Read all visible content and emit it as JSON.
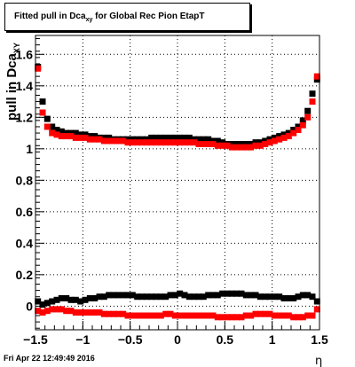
{
  "title": {
    "prefix": "Fitted pull in Dca",
    "subscript": "xy",
    "suffix": " for Global Rec Pion EtapT"
  },
  "footer": {
    "timestamp": "Fri Apr 22 12:49:49 2016"
  },
  "chart_data": {
    "type": "scatter",
    "xlabel": "η",
    "ylabel": "pull in Dca",
    "ylabel_subscript": "XY",
    "xlim": [
      -1.5,
      1.5
    ],
    "ylim": [
      -0.15,
      1.72
    ],
    "grid": true,
    "x_ticks": [
      -1.5,
      -1,
      -0.5,
      0,
      0.5,
      1,
      1.5
    ],
    "x_tick_labels": [
      "−1.5",
      "−1",
      "−0.5",
      "0",
      "0.5",
      "1",
      "1.5"
    ],
    "y_ticks": [
      0,
      0.2,
      0.4,
      0.6,
      0.8,
      1.0,
      1.2,
      1.4,
      1.6
    ],
    "y_tick_labels": [
      "0",
      "0.2",
      "0.4",
      "0.6",
      "0.8",
      "1",
      "1.2",
      "1.4",
      "1.6"
    ],
    "series": [
      {
        "color": "#000000",
        "x": [
          -1.475,
          -1.425,
          -1.375,
          -1.325,
          -1.275,
          -1.225,
          -1.175,
          -1.125,
          -1.075,
          -1.025,
          -0.975,
          -0.925,
          -0.875,
          -0.825,
          -0.775,
          -0.725,
          -0.675,
          -0.625,
          -0.575,
          -0.525,
          -0.475,
          -0.425,
          -0.375,
          -0.325,
          -0.275,
          -0.225,
          -0.175,
          -0.125,
          -0.075,
          -0.025,
          0.025,
          0.075,
          0.125,
          0.175,
          0.225,
          0.275,
          0.325,
          0.375,
          0.425,
          0.475,
          0.525,
          0.575,
          0.625,
          0.675,
          0.725,
          0.775,
          0.825,
          0.875,
          0.925,
          0.975,
          1.025,
          1.075,
          1.125,
          1.175,
          1.225,
          1.275,
          1.325,
          1.375,
          1.425,
          1.475
        ],
        "y": [
          1.52,
          1.3,
          1.19,
          1.14,
          1.12,
          1.11,
          1.1,
          1.1,
          1.1,
          1.09,
          1.09,
          1.08,
          1.08,
          1.07,
          1.07,
          1.07,
          1.06,
          1.06,
          1.06,
          1.06,
          1.06,
          1.06,
          1.06,
          1.06,
          1.07,
          1.07,
          1.07,
          1.07,
          1.07,
          1.07,
          1.07,
          1.07,
          1.07,
          1.06,
          1.06,
          1.06,
          1.06,
          1.05,
          1.05,
          1.04,
          1.03,
          1.03,
          1.03,
          1.03,
          1.03,
          1.03,
          1.04,
          1.04,
          1.05,
          1.06,
          1.07,
          1.08,
          1.09,
          1.1,
          1.12,
          1.14,
          1.18,
          1.24,
          1.35,
          1.44
        ]
      },
      {
        "color": "#ff0000",
        "x": [
          -1.475,
          -1.425,
          -1.375,
          -1.325,
          -1.275,
          -1.225,
          -1.175,
          -1.125,
          -1.075,
          -1.025,
          -0.975,
          -0.925,
          -0.875,
          -0.825,
          -0.775,
          -0.725,
          -0.675,
          -0.625,
          -0.575,
          -0.525,
          -0.475,
          -0.425,
          -0.375,
          -0.325,
          -0.275,
          -0.225,
          -0.175,
          -0.125,
          -0.075,
          -0.025,
          0.025,
          0.075,
          0.125,
          0.175,
          0.225,
          0.275,
          0.325,
          0.375,
          0.425,
          0.475,
          0.525,
          0.575,
          0.625,
          0.675,
          0.725,
          0.775,
          0.825,
          0.875,
          0.925,
          0.975,
          1.025,
          1.075,
          1.125,
          1.175,
          1.225,
          1.275,
          1.325,
          1.375,
          1.425,
          1.475
        ],
        "y": [
          1.51,
          1.23,
          1.14,
          1.1,
          1.09,
          1.08,
          1.08,
          1.08,
          1.07,
          1.07,
          1.07,
          1.06,
          1.06,
          1.06,
          1.05,
          1.05,
          1.05,
          1.05,
          1.05,
          1.04,
          1.04,
          1.04,
          1.04,
          1.04,
          1.04,
          1.04,
          1.04,
          1.04,
          1.04,
          1.04,
          1.04,
          1.04,
          1.04,
          1.04,
          1.03,
          1.03,
          1.03,
          1.03,
          1.02,
          1.02,
          1.02,
          1.01,
          1.01,
          1.01,
          1.01,
          1.01,
          1.02,
          1.02,
          1.03,
          1.04,
          1.05,
          1.06,
          1.07,
          1.08,
          1.1,
          1.12,
          1.15,
          1.2,
          1.3,
          1.46
        ]
      },
      {
        "color": "#000000",
        "x": [
          -1.475,
          -1.425,
          -1.375,
          -1.325,
          -1.275,
          -1.225,
          -1.175,
          -1.125,
          -1.075,
          -1.025,
          -0.975,
          -0.925,
          -0.875,
          -0.825,
          -0.775,
          -0.725,
          -0.675,
          -0.625,
          -0.575,
          -0.525,
          -0.475,
          -0.425,
          -0.375,
          -0.325,
          -0.275,
          -0.225,
          -0.175,
          -0.125,
          -0.075,
          -0.025,
          0.025,
          0.075,
          0.125,
          0.175,
          0.225,
          0.275,
          0.325,
          0.375,
          0.425,
          0.475,
          0.525,
          0.575,
          0.625,
          0.675,
          0.725,
          0.775,
          0.825,
          0.875,
          0.925,
          0.975,
          1.025,
          1.075,
          1.125,
          1.175,
          1.225,
          1.275,
          1.325,
          1.375,
          1.425,
          1.475
        ],
        "y": [
          0.03,
          0.01,
          0.02,
          0.03,
          0.04,
          0.05,
          0.05,
          0.04,
          0.04,
          0.03,
          0.04,
          0.05,
          0.05,
          0.06,
          0.06,
          0.07,
          0.07,
          0.07,
          0.07,
          0.07,
          0.07,
          0.06,
          0.06,
          0.06,
          0.06,
          0.06,
          0.06,
          0.06,
          0.07,
          0.07,
          0.08,
          0.07,
          0.06,
          0.06,
          0.06,
          0.06,
          0.07,
          0.07,
          0.07,
          0.08,
          0.08,
          0.08,
          0.08,
          0.08,
          0.07,
          0.07,
          0.07,
          0.06,
          0.06,
          0.06,
          0.06,
          0.06,
          0.05,
          0.05,
          0.05,
          0.06,
          0.07,
          0.07,
          0.06,
          0.03
        ]
      },
      {
        "color": "#ff0000",
        "x": [
          -1.475,
          -1.425,
          -1.375,
          -1.325,
          -1.275,
          -1.225,
          -1.175,
          -1.125,
          -1.075,
          -1.025,
          -0.975,
          -0.925,
          -0.875,
          -0.825,
          -0.775,
          -0.725,
          -0.675,
          -0.625,
          -0.575,
          -0.525,
          -0.475,
          -0.425,
          -0.375,
          -0.325,
          -0.275,
          -0.225,
          -0.175,
          -0.125,
          -0.075,
          -0.025,
          0.025,
          0.075,
          0.125,
          0.175,
          0.225,
          0.275,
          0.325,
          0.375,
          0.425,
          0.475,
          0.525,
          0.575,
          0.625,
          0.675,
          0.725,
          0.775,
          0.825,
          0.875,
          0.925,
          0.975,
          1.025,
          1.075,
          1.125,
          1.175,
          1.225,
          1.275,
          1.325,
          1.375,
          1.425,
          1.475
        ],
        "y": [
          -0.03,
          -0.04,
          -0.03,
          -0.02,
          -0.02,
          -0.02,
          -0.03,
          -0.03,
          -0.04,
          -0.04,
          -0.04,
          -0.04,
          -0.04,
          -0.04,
          -0.05,
          -0.05,
          -0.05,
          -0.05,
          -0.05,
          -0.06,
          -0.06,
          -0.06,
          -0.06,
          -0.06,
          -0.06,
          -0.06,
          -0.06,
          -0.05,
          -0.05,
          -0.06,
          -0.06,
          -0.06,
          -0.06,
          -0.06,
          -0.06,
          -0.06,
          -0.06,
          -0.06,
          -0.07,
          -0.07,
          -0.07,
          -0.07,
          -0.07,
          -0.07,
          -0.06,
          -0.06,
          -0.05,
          -0.05,
          -0.05,
          -0.05,
          -0.06,
          -0.06,
          -0.06,
          -0.06,
          -0.07,
          -0.07,
          -0.07,
          -0.06,
          -0.06,
          -0.02
        ]
      }
    ]
  }
}
